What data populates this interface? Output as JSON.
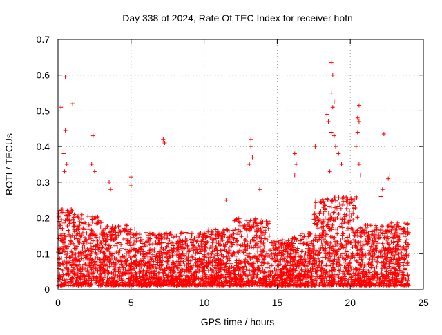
{
  "chart_data": {
    "type": "scatter",
    "title": "Day 338 of 2024, Rate Of TEC Index for receiver hofn",
    "xlabel": "GPS time / hours",
    "ylabel": "ROTI / TECUs",
    "xlim": [
      0,
      25
    ],
    "ylim": [
      0,
      0.7
    ],
    "x_ticks": [
      0,
      5,
      10,
      15,
      20,
      25
    ],
    "x_tick_labels": [
      "0",
      "5",
      "10",
      "15",
      "20",
      "25"
    ],
    "y_ticks": [
      0,
      0.1,
      0.2,
      0.3,
      0.4,
      0.5,
      0.6,
      0.7
    ],
    "y_tick_labels": [
      "0",
      "0.1",
      "0.2",
      "0.3",
      "0.4",
      "0.5",
      "0.6",
      "0.7"
    ],
    "grid": true,
    "marker": "+",
    "marker_color": "#ff0000",
    "series": [
      {
        "name": "ROTI",
        "points": [
          [
            0.2,
            0.51
          ],
          [
            0.5,
            0.595
          ],
          [
            1.0,
            0.52
          ],
          [
            0.5,
            0.445
          ],
          [
            0.4,
            0.38
          ],
          [
            0.6,
            0.35
          ],
          [
            0.45,
            0.33
          ],
          [
            2.4,
            0.43
          ],
          [
            2.3,
            0.35
          ],
          [
            2.5,
            0.33
          ],
          [
            2.2,
            0.32
          ],
          [
            3.5,
            0.3
          ],
          [
            3.6,
            0.28
          ],
          [
            5.0,
            0.315
          ],
          [
            5.0,
            0.29
          ],
          [
            7.2,
            0.42
          ],
          [
            7.3,
            0.41
          ],
          [
            11.5,
            0.25
          ],
          [
            13.2,
            0.42
          ],
          [
            13.2,
            0.4
          ],
          [
            13.3,
            0.37
          ],
          [
            13.1,
            0.35
          ],
          [
            13.8,
            0.28
          ],
          [
            16.2,
            0.38
          ],
          [
            16.3,
            0.35
          ],
          [
            16.2,
            0.32
          ],
          [
            17.6,
            0.4
          ],
          [
            18.7,
            0.635
          ],
          [
            18.8,
            0.6
          ],
          [
            18.7,
            0.55
          ],
          [
            18.9,
            0.525
          ],
          [
            18.8,
            0.51
          ],
          [
            18.4,
            0.49
          ],
          [
            18.5,
            0.47
          ],
          [
            18.7,
            0.44
          ],
          [
            18.9,
            0.43
          ],
          [
            19.0,
            0.4
          ],
          [
            19.2,
            0.38
          ],
          [
            19.4,
            0.35
          ],
          [
            18.6,
            0.33
          ],
          [
            20.6,
            0.515
          ],
          [
            20.5,
            0.48
          ],
          [
            20.6,
            0.47
          ],
          [
            20.5,
            0.44
          ],
          [
            20.4,
            0.4
          ],
          [
            20.6,
            0.35
          ],
          [
            20.7,
            0.32
          ],
          [
            22.3,
            0.435
          ],
          [
            22.7,
            0.32
          ],
          [
            22.6,
            0.31
          ],
          [
            22.2,
            0.28
          ],
          [
            22.1,
            0.26
          ]
        ]
      }
    ]
  }
}
